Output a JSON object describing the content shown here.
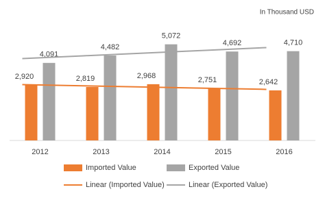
{
  "chart_data": {
    "type": "bar",
    "annotation": "In Thousand USD",
    "categories": [
      "2012",
      "2013",
      "2014",
      "2015",
      "2016"
    ],
    "ylim": [
      0,
      6000
    ],
    "series": [
      {
        "name": "Imported Value",
        "color": "#ed7d31",
        "values": [
          2920,
          2819,
          2968,
          2751,
          2642
        ],
        "value_labels": [
          "2,920",
          "2,819",
          "2,968",
          "2,751",
          "2,642"
        ]
      },
      {
        "name": "Exported Value",
        "color": "#a5a5a5",
        "values": [
          4091,
          4482,
          5072,
          4692,
          4710
        ],
        "value_labels": [
          "4,091",
          "4,482",
          "5,072",
          "4,692",
          "4,710"
        ]
      },
      {
        "name": "Linear (Imported Value)",
        "type": "line",
        "color": "#ed7d31",
        "values": [
          2945,
          2882,
          2820,
          2758,
          2695
        ]
      },
      {
        "name": "Linear (Exported Value)",
        "type": "line",
        "color": "#a5a5a5",
        "values": [
          4320,
          4465,
          4609,
          4754,
          4899
        ]
      }
    ]
  }
}
